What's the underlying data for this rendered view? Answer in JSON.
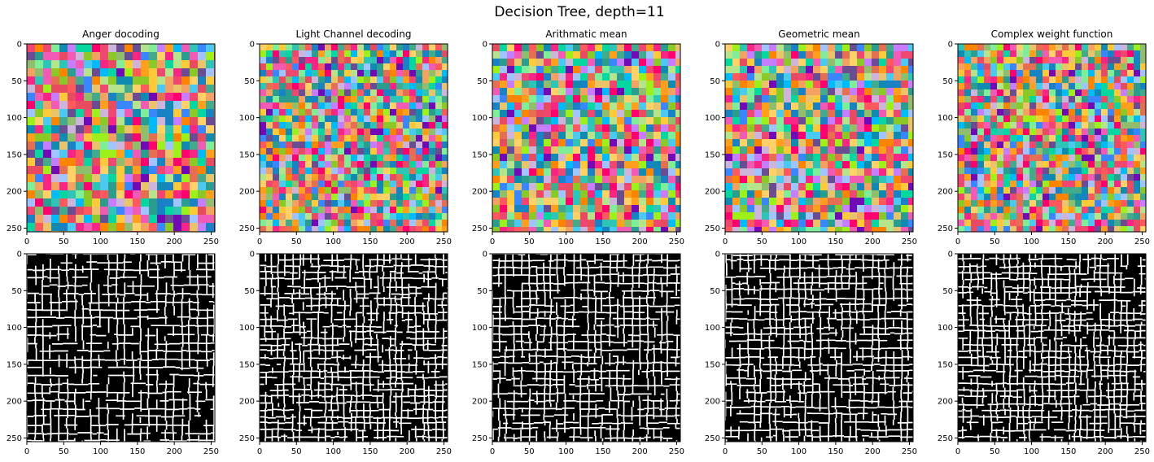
{
  "figure": {
    "suptitle": "Decision Tree, depth=11"
  },
  "chart_data": [
    {
      "type": "heatmap",
      "panel": "segmentation",
      "title": "Anger docoding",
      "seed": 11,
      "cell": 10,
      "xlim": [
        0,
        255
      ],
      "ylim": [
        255,
        0
      ],
      "xticks": [
        0,
        50,
        100,
        150,
        200,
        250
      ],
      "yticks": [
        0,
        50,
        100,
        150,
        200,
        250
      ]
    },
    {
      "type": "heatmap",
      "panel": "segmentation",
      "title": "Light Channel decoding",
      "seed": 23,
      "cell": 8,
      "xlim": [
        0,
        255
      ],
      "ylim": [
        255,
        0
      ],
      "xticks": [
        0,
        50,
        100,
        150,
        200,
        250
      ],
      "yticks": [
        0,
        50,
        100,
        150,
        200,
        250
      ]
    },
    {
      "type": "heatmap",
      "panel": "segmentation",
      "title": "Arithmatic mean",
      "seed": 37,
      "cell": 9,
      "xlim": [
        0,
        255
      ],
      "ylim": [
        255,
        0
      ],
      "xticks": [
        0,
        50,
        100,
        150,
        200,
        250
      ],
      "yticks": [
        0,
        50,
        100,
        150,
        200,
        250
      ]
    },
    {
      "type": "heatmap",
      "panel": "segmentation",
      "title": "Geometric mean",
      "seed": 41,
      "cell": 9,
      "xlim": [
        0,
        255
      ],
      "ylim": [
        255,
        0
      ],
      "xticks": [
        0,
        50,
        100,
        150,
        200,
        250
      ],
      "yticks": [
        0,
        50,
        100,
        150,
        200,
        250
      ]
    },
    {
      "type": "heatmap",
      "panel": "segmentation",
      "title": "Complex weight function",
      "seed": 53,
      "cell": 8,
      "xlim": [
        0,
        255
      ],
      "ylim": [
        255,
        0
      ],
      "xticks": [
        0,
        50,
        100,
        150,
        200,
        250
      ],
      "yticks": [
        0,
        50,
        100,
        150,
        200,
        250
      ]
    },
    {
      "type": "heatmap",
      "panel": "edges",
      "title": "",
      "seed": 11,
      "cell": 10,
      "xlim": [
        0,
        255
      ],
      "ylim": [
        255,
        0
      ],
      "xticks": [
        0,
        50,
        100,
        150,
        200,
        250
      ],
      "yticks": [
        0,
        50,
        100,
        150,
        200,
        250
      ]
    },
    {
      "type": "heatmap",
      "panel": "edges",
      "title": "",
      "seed": 23,
      "cell": 8,
      "xlim": [
        0,
        255
      ],
      "ylim": [
        255,
        0
      ],
      "xticks": [
        0,
        50,
        100,
        150,
        200,
        250
      ],
      "yticks": [
        0,
        50,
        100,
        150,
        200,
        250
      ]
    },
    {
      "type": "heatmap",
      "panel": "edges",
      "title": "",
      "seed": 37,
      "cell": 9,
      "xlim": [
        0,
        255
      ],
      "ylim": [
        255,
        0
      ],
      "xticks": [
        0,
        50,
        100,
        150,
        200,
        250
      ],
      "yticks": [
        0,
        50,
        100,
        150,
        200,
        250
      ]
    },
    {
      "type": "heatmap",
      "panel": "edges",
      "title": "",
      "seed": 41,
      "cell": 9,
      "xlim": [
        0,
        255
      ],
      "ylim": [
        255,
        0
      ],
      "xticks": [
        0,
        50,
        100,
        150,
        200,
        250
      ],
      "yticks": [
        0,
        50,
        100,
        150,
        200,
        250
      ]
    },
    {
      "type": "heatmap",
      "panel": "edges",
      "title": "",
      "seed": 53,
      "cell": 8,
      "xlim": [
        0,
        255
      ],
      "ylim": [
        255,
        0
      ],
      "xticks": [
        0,
        50,
        100,
        150,
        200,
        250
      ],
      "yticks": [
        0,
        50,
        100,
        150,
        200,
        250
      ]
    }
  ]
}
